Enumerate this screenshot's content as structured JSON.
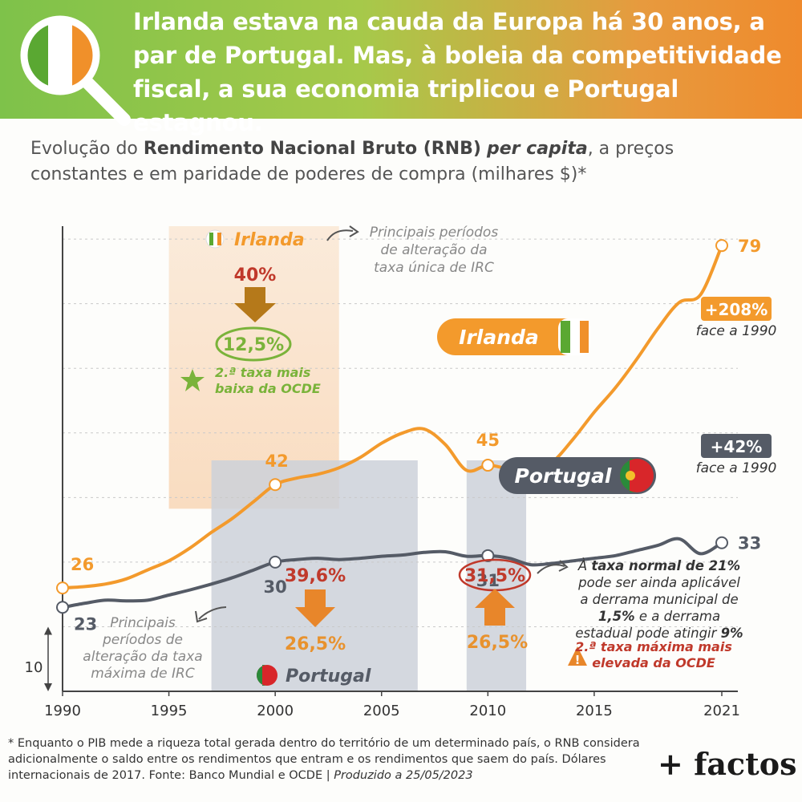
{
  "header": {
    "headline": "Irlanda estava na cauda da Europa há 30 anos, a par de Portugal. Mas, à boleia da competitividade fiscal, a sua economia triplicou e Portugal estagnou."
  },
  "subtitle": {
    "part1": "Evolução do ",
    "bold": "Rendimento Nacional Bruto (RNB)",
    "italic": "per capita",
    "part2": ", a preços constantes e em paridade de poderes de compra (milhares $)*"
  },
  "colors": {
    "ireland": "#f39a2c",
    "portugal": "#555b66",
    "green_label": "#7ab33a",
    "red_label": "#c0392b",
    "band_ireland": "#f9dcc0",
    "band_portugal": "#cdd1d9"
  },
  "chart_data": {
    "type": "line",
    "xlim": [
      1990,
      2021
    ],
    "ylim": [
      10,
      82
    ],
    "x_ticks": [
      "1990",
      "1995",
      "2000",
      "2005",
      "2010",
      "2015",
      "2021"
    ],
    "scale_label": "10",
    "series": [
      {
        "name": "Irlanda",
        "points": [
          [
            1990,
            26
          ],
          [
            1991,
            26.2
          ],
          [
            1992,
            26.6
          ],
          [
            1993,
            27.4
          ],
          [
            1994,
            28.8
          ],
          [
            1995,
            30.2
          ],
          [
            1996,
            32.2
          ],
          [
            1997,
            34.6
          ],
          [
            1998,
            36.8
          ],
          [
            1999,
            39.4
          ],
          [
            2000,
            42
          ],
          [
            2001,
            43
          ],
          [
            2002,
            43.6
          ],
          [
            2003,
            44.6
          ],
          [
            2004,
            46.2
          ],
          [
            2005,
            48.4
          ],
          [
            2006,
            50
          ],
          [
            2007,
            50.6
          ],
          [
            2008,
            48.2
          ],
          [
            2009,
            44.2
          ],
          [
            2010,
            45
          ],
          [
            2011,
            44.4
          ],
          [
            2012,
            44.1
          ],
          [
            2013,
            45.4
          ],
          [
            2014,
            49
          ],
          [
            2015,
            53.2
          ],
          [
            2016,
            57
          ],
          [
            2017,
            61.4
          ],
          [
            2018,
            66.2
          ],
          [
            2019,
            70.2
          ],
          [
            2020,
            71.4
          ],
          [
            2021,
            79
          ]
        ],
        "labels": [
          {
            "x": 1990,
            "y": 26,
            "text": "26"
          },
          {
            "x": 2000,
            "y": 42,
            "text": "42"
          },
          {
            "x": 2010,
            "y": 45,
            "text": "45"
          },
          {
            "x": 2021,
            "y": 79,
            "text": "79"
          }
        ],
        "change": "+208%",
        "change_note": "face a 1990"
      },
      {
        "name": "Portugal",
        "points": [
          [
            1990,
            23
          ],
          [
            1991,
            23.6
          ],
          [
            1992,
            24.1
          ],
          [
            1993,
            24
          ],
          [
            1994,
            24.1
          ],
          [
            1995,
            24.9
          ],
          [
            1996,
            25.7
          ],
          [
            1997,
            26.6
          ],
          [
            1998,
            27.6
          ],
          [
            1999,
            28.8
          ],
          [
            2000,
            30
          ],
          [
            2001,
            30.4
          ],
          [
            2002,
            30.6
          ],
          [
            2003,
            30.4
          ],
          [
            2004,
            30.6
          ],
          [
            2005,
            30.9
          ],
          [
            2006,
            31.1
          ],
          [
            2007,
            31.5
          ],
          [
            2008,
            31.6
          ],
          [
            2009,
            30.9
          ],
          [
            2010,
            31
          ],
          [
            2011,
            30.6
          ],
          [
            2012,
            29.6
          ],
          [
            2013,
            29.8
          ],
          [
            2014,
            30.2
          ],
          [
            2015,
            30.6
          ],
          [
            2016,
            31
          ],
          [
            2017,
            31.8
          ],
          [
            2018,
            32.6
          ],
          [
            2019,
            33.6
          ],
          [
            2020,
            31.3
          ],
          [
            2021,
            33
          ]
        ],
        "labels": [
          {
            "x": 1990,
            "y": 23,
            "text": "23"
          },
          {
            "x": 2000,
            "y": 30,
            "text": "30"
          },
          {
            "x": 2010,
            "y": 31,
            "text": "31"
          },
          {
            "x": 2021,
            "y": 33,
            "text": "33"
          }
        ],
        "change": "+42%",
        "change_note": "face a 1990"
      }
    ],
    "bands": [
      {
        "country": "Irlanda",
        "from": 1995,
        "to": 2003
      },
      {
        "country": "Portugal",
        "from": 1997,
        "to": 2006.7
      },
      {
        "country": "Portugal",
        "from": 2009,
        "to": 2011.8
      }
    ],
    "annotations": {
      "ireland_band_title": "Irlanda",
      "ireland_rate_from": "40%",
      "ireland_rate_to": "12,5%",
      "ireland_rank": [
        "2.ª taxa mais",
        "baixa da OCDE"
      ],
      "ireland_period_note": [
        "Principais períodos",
        "de alteração da",
        "taxa única de IRC"
      ],
      "portugal_band_title": "Portugal",
      "portugal_rate_from": "39,6%",
      "portugal_rate_to": "26,5%",
      "portugal_rate2_from": "26,5%",
      "portugal_rate2_to": "31,5%",
      "portugal_period_note": [
        "Principais",
        "períodos de",
        "alteração da taxa",
        "máxima de IRC"
      ],
      "portugal_rule_note": [
        [
          "À ",
          "taxa normal de 21%",
          ""
        ],
        [
          "pode ser ainda aplicável",
          "",
          ""
        ],
        [
          "a derrama municipal de",
          "",
          ""
        ],
        [
          "",
          "1,5%",
          " e a derrama"
        ],
        [
          "estadual pode atingir ",
          "9%",
          ""
        ]
      ],
      "portugal_rank": [
        "2.ª taxa máxima mais",
        "elevada da OCDE"
      ]
    }
  },
  "footnote": {
    "text": "* Enquanto o PIB mede a riqueza total gerada dentro do território de um determinado país, o RNB considera adicionalmente o saldo entre os rendimentos que entram e os rendimentos que saem do país. Dólares internacionais de 2017. Fonte: Banco Mundial e OCDE | ",
    "produced": "Produzido a 25/05/2023"
  },
  "brand": {
    "logo_text": "+ factos"
  }
}
